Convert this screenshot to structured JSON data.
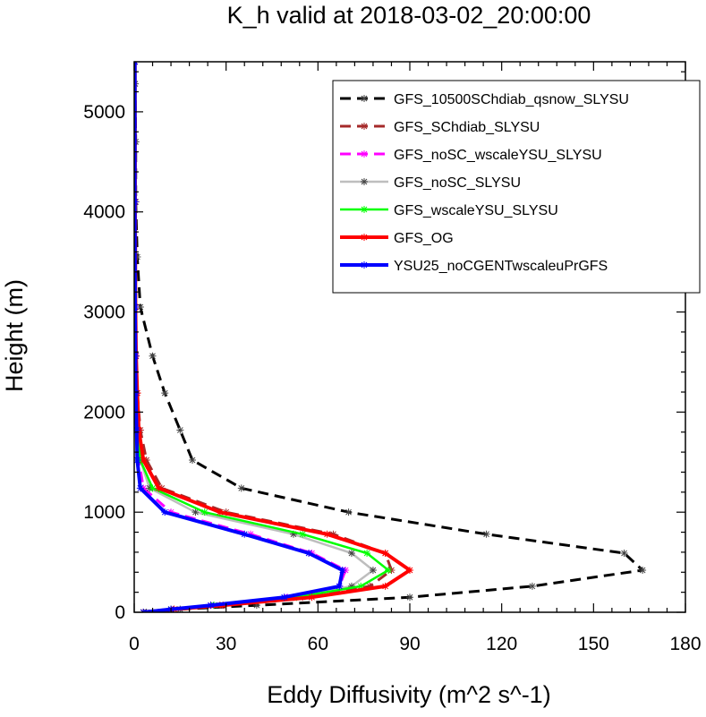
{
  "chart_data": {
    "type": "line",
    "title": "K_h valid at 2018-03-02_20:00:00",
    "xlabel": "Eddy Diffusivity (m^2 s^-1)",
    "ylabel": "Height (m)",
    "xlim": [
      0,
      180
    ],
    "ylim": [
      0,
      5500
    ],
    "xticks": [
      "0",
      "30",
      "60",
      "90",
      "120",
      "150",
      "180"
    ],
    "yticks": [
      "0",
      "1000",
      "2000",
      "3000",
      "4000",
      "5000"
    ],
    "grid": false,
    "legend_position": "top-right",
    "series": [
      {
        "name": "GFS_10500SChdiab_qsnow_SLYSU",
        "color": "#000000",
        "dash": "dashed",
        "points": [
          [
            4,
            0
          ],
          [
            15,
            30
          ],
          [
            40,
            70
          ],
          [
            90,
            150
          ],
          [
            130,
            260
          ],
          [
            166,
            420
          ],
          [
            160,
            590
          ],
          [
            115,
            780
          ],
          [
            70,
            1000
          ],
          [
            35,
            1240
          ],
          [
            19,
            1520
          ],
          [
            15,
            1820
          ],
          [
            10,
            2190
          ],
          [
            6,
            2560
          ],
          [
            2,
            3050
          ],
          [
            1,
            3550
          ],
          [
            0.5,
            4100
          ],
          [
            0.5,
            4700
          ],
          [
            0.3,
            5280
          ],
          [
            0.2,
            5500
          ]
        ]
      },
      {
        "name": "GFS_SChdiab_SLYSU",
        "color": "#a52a2a",
        "dash": "dashed",
        "points": [
          [
            3,
            0
          ],
          [
            13,
            30
          ],
          [
            28,
            70
          ],
          [
            55,
            150
          ],
          [
            77,
            260
          ],
          [
            84,
            420
          ],
          [
            82,
            590
          ],
          [
            65,
            780
          ],
          [
            30,
            1000
          ],
          [
            9,
            1240
          ],
          [
            4,
            1520
          ],
          [
            2,
            1820
          ],
          [
            1,
            2190
          ],
          [
            0.5,
            2560
          ],
          [
            0.5,
            3050
          ],
          [
            0.3,
            4100
          ],
          [
            0.2,
            5500
          ]
        ]
      },
      {
        "name": "GFS_noSC_wscaleYSU_SLYSU",
        "color": "#ff00ff",
        "dash": "dashed",
        "points": [
          [
            3,
            0
          ],
          [
            12,
            30
          ],
          [
            25,
            70
          ],
          [
            50,
            150
          ],
          [
            67,
            260
          ],
          [
            69,
            420
          ],
          [
            58,
            590
          ],
          [
            38,
            780
          ],
          [
            12,
            1000
          ],
          [
            3,
            1240
          ],
          [
            1.5,
            1520
          ],
          [
            1,
            1820
          ],
          [
            0.6,
            2190
          ],
          [
            0.4,
            2560
          ],
          [
            0.3,
            3050
          ],
          [
            0.2,
            4100
          ],
          [
            0.2,
            5500
          ]
        ]
      },
      {
        "name": "GFS_noSC_SLYSU",
        "color": "#bebebe",
        "dash": "solid",
        "points": [
          [
            3,
            0
          ],
          [
            12,
            30
          ],
          [
            26,
            70
          ],
          [
            52,
            150
          ],
          [
            71,
            260
          ],
          [
            78,
            420
          ],
          [
            71,
            590
          ],
          [
            52,
            780
          ],
          [
            20,
            1000
          ],
          [
            5,
            1240
          ],
          [
            2,
            1520
          ],
          [
            1,
            1820
          ],
          [
            0.6,
            2190
          ],
          [
            0.4,
            2560
          ],
          [
            0.3,
            3050
          ],
          [
            0.2,
            4100
          ],
          [
            0.2,
            5500
          ]
        ]
      },
      {
        "name": "GFS_wscaleYSU_SLYSU",
        "color": "#00ff00",
        "dash": "solid",
        "points": [
          [
            3,
            0
          ],
          [
            12,
            30
          ],
          [
            26,
            70
          ],
          [
            53,
            150
          ],
          [
            74,
            260
          ],
          [
            83,
            420
          ],
          [
            76,
            590
          ],
          [
            55,
            780
          ],
          [
            23,
            1000
          ],
          [
            6,
            1240
          ],
          [
            2,
            1520
          ],
          [
            1,
            1820
          ],
          [
            0.6,
            2190
          ],
          [
            0.4,
            2560
          ],
          [
            0.3,
            3050
          ],
          [
            0.2,
            4100
          ],
          [
            0.2,
            5500
          ]
        ]
      },
      {
        "name": "GFS_OG",
        "color": "#ff0000",
        "dash": "solid",
        "points": [
          [
            3,
            0
          ],
          [
            13,
            30
          ],
          [
            29,
            70
          ],
          [
            58,
            150
          ],
          [
            82,
            260
          ],
          [
            90,
            420
          ],
          [
            82,
            590
          ],
          [
            63,
            780
          ],
          [
            28,
            1000
          ],
          [
            8,
            1240
          ],
          [
            3,
            1520
          ],
          [
            1.5,
            1820
          ],
          [
            1,
            2190
          ],
          [
            0.6,
            2560
          ],
          [
            0.4,
            3050
          ],
          [
            0.3,
            4100
          ],
          [
            0.2,
            5500
          ]
        ]
      },
      {
        "name": "YSU25_noCGENTwscaleuPrGFS",
        "color": "#0000ff",
        "dash": "solid",
        "points": [
          [
            3,
            0
          ],
          [
            12,
            30
          ],
          [
            25,
            70
          ],
          [
            49,
            150
          ],
          [
            67,
            260
          ],
          [
            68,
            420
          ],
          [
            57,
            590
          ],
          [
            36,
            780
          ],
          [
            10,
            1000
          ],
          [
            2,
            1240
          ],
          [
            1,
            1520
          ],
          [
            0.8,
            1820
          ],
          [
            0.5,
            2190
          ],
          [
            0.4,
            2560
          ],
          [
            0.3,
            3050
          ],
          [
            0.2,
            4100
          ],
          [
            0.2,
            5500
          ]
        ]
      }
    ]
  }
}
